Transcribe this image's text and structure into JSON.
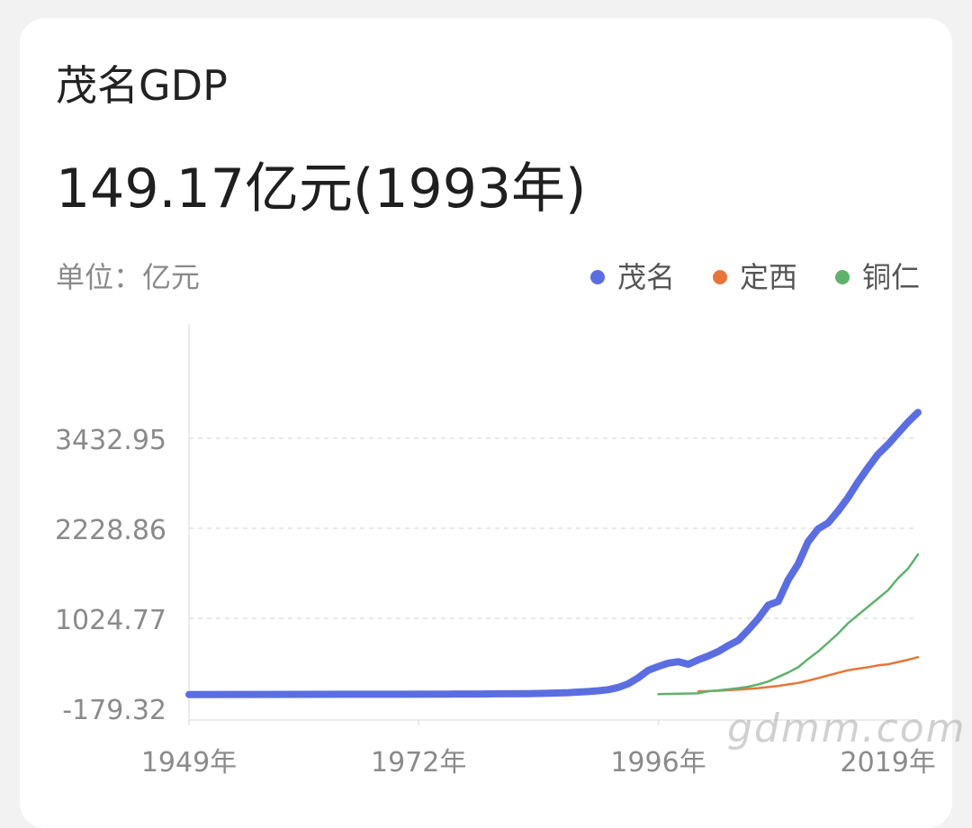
{
  "card": {
    "title": "茂名GDP",
    "headline": "149.17亿元(1993年)",
    "unit_label": "单位：亿元"
  },
  "watermark": "gdmm.com",
  "colors": {
    "maoming": "#5b6ee1",
    "dingxi": "#e8753a",
    "tongren": "#5fb26d",
    "axis_text": "#8a8a8a",
    "grid": "#e2e2e2"
  },
  "chart_data": {
    "type": "line",
    "title": "茂名GDP",
    "ylabel": "单位：亿元",
    "xlabel": "",
    "ylim": [
      -179.32,
      3800
    ],
    "xlim": [
      1949,
      2022
    ],
    "y_ticks": [
      -179.32,
      1024.77,
      2228.86,
      3432.95
    ],
    "y_tick_labels": [
      "-179.32",
      "1024.77",
      "2228.86",
      "3432.95"
    ],
    "x_ticks": [
      1949,
      1972,
      1996,
      2019
    ],
    "x_tick_labels": [
      "1949年",
      "1972年",
      "1996年",
      "2019年"
    ],
    "grid": "horizontal dashed",
    "legend_position": "top-right",
    "series": [
      {
        "name": "茂名",
        "color": "#5b6ee1",
        "points": [
          [
            1949,
            5
          ],
          [
            1955,
            6
          ],
          [
            1960,
            7
          ],
          [
            1965,
            8
          ],
          [
            1970,
            9
          ],
          [
            1975,
            11
          ],
          [
            1978,
            12
          ],
          [
            1980,
            14
          ],
          [
            1983,
            17
          ],
          [
            1985,
            22
          ],
          [
            1987,
            30
          ],
          [
            1989,
            45
          ],
          [
            1990,
            55
          ],
          [
            1991,
            70
          ],
          [
            1992,
            100
          ],
          [
            1993,
            149.17
          ],
          [
            1994,
            230
          ],
          [
            1995,
            330
          ],
          [
            1996,
            380
          ],
          [
            1997,
            425
          ],
          [
            1998,
            445
          ],
          [
            1999,
            410
          ],
          [
            2000,
            470
          ],
          [
            2001,
            520
          ],
          [
            2002,
            580
          ],
          [
            2003,
            660
          ],
          [
            2004,
            730
          ],
          [
            2005,
            870
          ],
          [
            2006,
            1020
          ],
          [
            2007,
            1200
          ],
          [
            2008,
            1250
          ],
          [
            2009,
            1540
          ],
          [
            2010,
            1750
          ],
          [
            2011,
            2050
          ],
          [
            2012,
            2220
          ],
          [
            2013,
            2300
          ],
          [
            2014,
            2460
          ],
          [
            2015,
            2640
          ],
          [
            2016,
            2850
          ],
          [
            2017,
            3040
          ],
          [
            2018,
            3220
          ],
          [
            2019,
            3350
          ],
          [
            2020,
            3500
          ],
          [
            2021,
            3650
          ],
          [
            2022,
            3780
          ]
        ]
      },
      {
        "name": "定西",
        "color": "#e8753a",
        "points": [
          [
            2000,
            45
          ],
          [
            2002,
            55
          ],
          [
            2004,
            70
          ],
          [
            2006,
            90
          ],
          [
            2008,
            120
          ],
          [
            2010,
            160
          ],
          [
            2011,
            190
          ],
          [
            2012,
            225
          ],
          [
            2013,
            260
          ],
          [
            2014,
            295
          ],
          [
            2015,
            330
          ],
          [
            2016,
            350
          ],
          [
            2017,
            370
          ],
          [
            2018,
            395
          ],
          [
            2019,
            410
          ],
          [
            2020,
            440
          ],
          [
            2021,
            470
          ],
          [
            2022,
            505
          ]
        ]
      },
      {
        "name": "铜仁",
        "color": "#5fb26d",
        "points": [
          [
            1996,
            10
          ],
          [
            2000,
            20
          ],
          [
            2001,
            50
          ],
          [
            2002,
            60
          ],
          [
            2003,
            75
          ],
          [
            2004,
            90
          ],
          [
            2005,
            110
          ],
          [
            2006,
            140
          ],
          [
            2007,
            180
          ],
          [
            2008,
            240
          ],
          [
            2009,
            300
          ],
          [
            2010,
            370
          ],
          [
            2011,
            480
          ],
          [
            2012,
            580
          ],
          [
            2013,
            700
          ],
          [
            2014,
            820
          ],
          [
            2015,
            960
          ],
          [
            2016,
            1070
          ],
          [
            2017,
            1180
          ],
          [
            2018,
            1290
          ],
          [
            2019,
            1400
          ],
          [
            2020,
            1560
          ],
          [
            2021,
            1690
          ],
          [
            2022,
            1880
          ]
        ]
      }
    ]
  }
}
